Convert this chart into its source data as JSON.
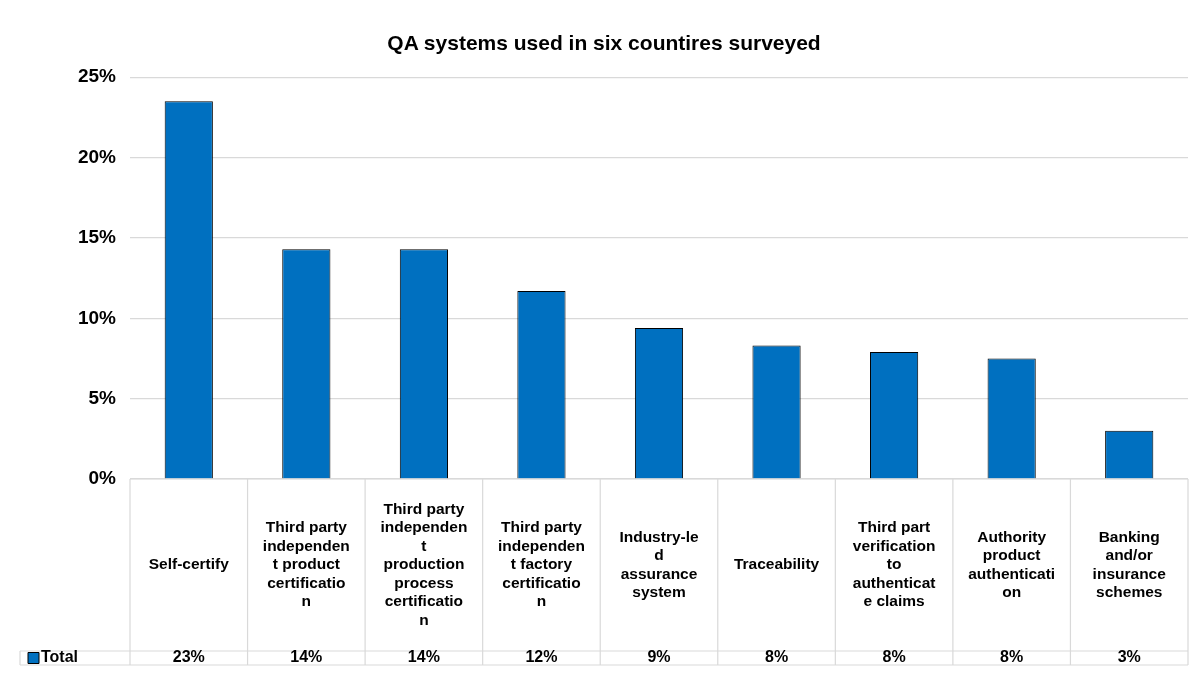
{
  "chart_data": {
    "type": "bar",
    "title": "QA systems used in six countires surveyed",
    "categories": [
      "Self-certify",
      "Third party independent product certification",
      "Third party independent production process certification",
      "Third party independent factory certification",
      "Industry-led assurance system",
      "Traceability",
      "Third part verification to authenticate claims",
      "Authority product authentication",
      "Banking and/or insurance schemes"
    ],
    "series": [
      {
        "name": "Total",
        "color": "#0070c0",
        "values": [
          23.5,
          14.3,
          14.3,
          11.7,
          9.4,
          8.3,
          7.9,
          7.5,
          3.0
        ],
        "value_labels": [
          "23%",
          "14%",
          "14%",
          "12%",
          "9%",
          "8%",
          "8%",
          "8%",
          "3%"
        ]
      }
    ],
    "ylim": [
      0,
      25
    ],
    "yticks": [
      {
        "value": 0,
        "label": "0%"
      },
      {
        "value": 5,
        "label": "5%"
      },
      {
        "value": 10,
        "label": "10%"
      },
      {
        "value": 15,
        "label": "15%"
      },
      {
        "value": 20,
        "label": "20%"
      },
      {
        "value": 25,
        "label": "25%"
      }
    ],
    "grid": "y",
    "legend": "bottom"
  }
}
